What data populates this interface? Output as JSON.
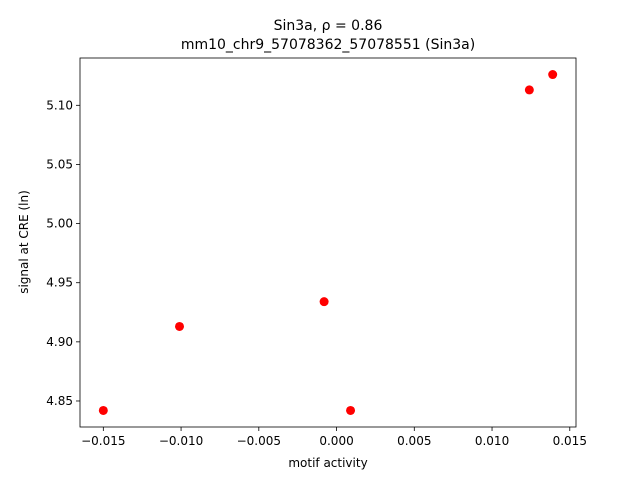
{
  "chart_data": {
    "type": "scatter",
    "title": "Sin3a, ρ = 0.86",
    "subtitle": "mm10_chr9_57078362_57078551 (Sin3a)",
    "x_label": "motif activity",
    "y_label": "signal at CRE (ln)",
    "color": "#ff0000",
    "x": [
      -0.015,
      -0.0101,
      -0.0008,
      0.0009,
      0.0124,
      0.0139
    ],
    "values": [
      4.842,
      4.913,
      4.934,
      4.842,
      5.113,
      5.126
    ],
    "xlim": [
      -0.0165,
      0.0154
    ],
    "ylim": [
      4.828,
      5.14
    ],
    "xticks": [
      {
        "value": -0.015,
        "label": "−0.015"
      },
      {
        "value": -0.01,
        "label": "−0.010"
      },
      {
        "value": -0.005,
        "label": "−0.005"
      },
      {
        "value": 0,
        "label": "0.000"
      },
      {
        "value": 0.005,
        "label": "0.005"
      },
      {
        "value": 0.01,
        "label": "0.010"
      },
      {
        "value": 0.015,
        "label": "0.015"
      }
    ],
    "yticks": [
      4.85,
      {
        "value": 4.9,
        "label": "4.90"
      },
      4.95,
      {
        "value": 5,
        "label": "5.00"
      },
      5.05,
      {
        "value": 5.1,
        "label": "5.10"
      }
    ]
  }
}
